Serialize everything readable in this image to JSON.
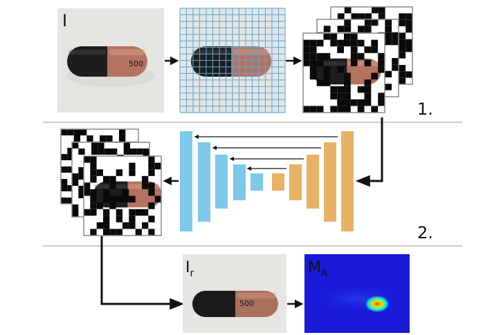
{
  "labels": {
    "input_image": "I",
    "reconstructed_image": "I",
    "reconstructed_subscript": "r",
    "anomaly_map": "M",
    "anomaly_map_subscript": "A"
  },
  "stages": {
    "stage1": "1.",
    "stage2": "2."
  },
  "pill_text": "500",
  "colors": {
    "encoder": "#7ec8ea",
    "decoder": "#eab265",
    "grid_lines": "#5aa7d8",
    "separator": "#999999",
    "arrows": "#111111",
    "heatmap_background": "#1a1ad9",
    "capsule_dark": "#1c1c1c",
    "capsule_brown": "#b06f57"
  },
  "icons": [
    "capsule-image",
    "grid-overlay",
    "masked-patch-stack",
    "unet-network",
    "heatmap"
  ]
}
